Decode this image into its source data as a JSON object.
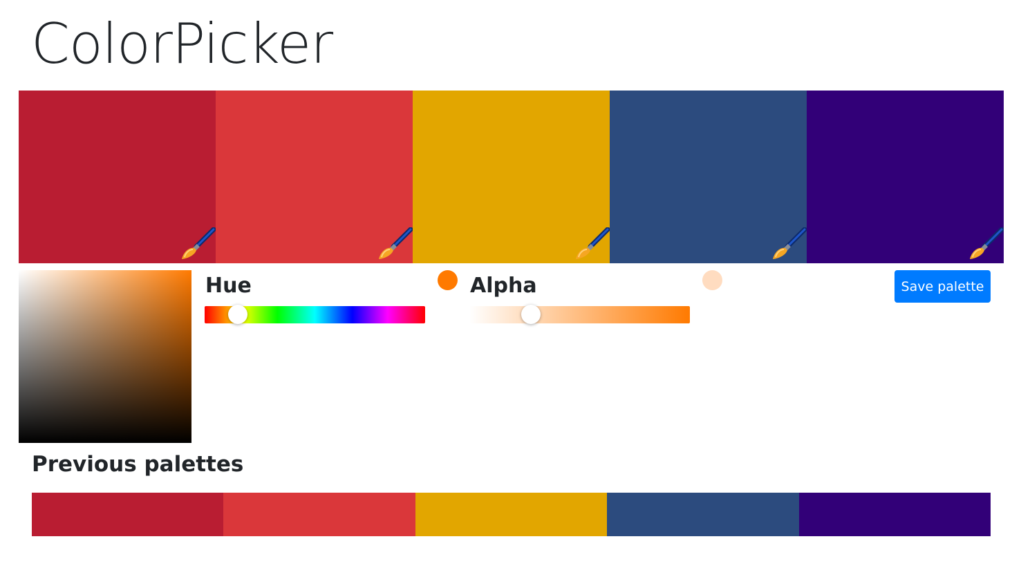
{
  "app": {
    "title": "ColorPicker"
  },
  "palette": {
    "colors": [
      "#b91d32",
      "#da373a",
      "#e2a600",
      "#2c4b7e",
      "#320078"
    ]
  },
  "editor": {
    "current_color": "#ff7a00",
    "hue_label": "Hue",
    "alpha_label": "Alpha",
    "hue_value_fraction": 0.15,
    "alpha_value_fraction": 0.28,
    "alpha_preview_color": "#ffdcc0",
    "save_label": "Save palette",
    "save_color": "#007bff"
  },
  "previous": {
    "heading": "Previous palettes",
    "palettes": [
      {
        "colors": [
          "#b91d32",
          "#da373a",
          "#e2a600",
          "#2c4b7e",
          "#320078"
        ]
      }
    ]
  },
  "icons": {
    "swatch_edit": "paintbrush-icon"
  }
}
